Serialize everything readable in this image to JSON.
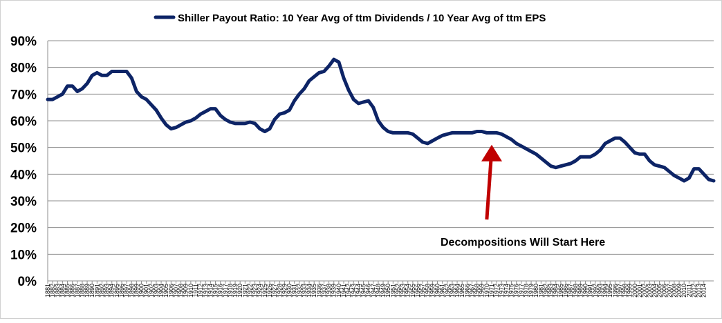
{
  "chart_data": {
    "type": "line",
    "title": "",
    "xlabel": "",
    "ylabel": "",
    "ylim": [
      0,
      90
    ],
    "y_ticks": [
      "0%",
      "10%",
      "20%",
      "30%",
      "40%",
      "50%",
      "60%",
      "70%",
      "80%",
      "90%"
    ],
    "grid": true,
    "legend_position": "top",
    "x_ticks": [
      "1881",
      "1883",
      "1885",
      "1887",
      "1889",
      "1891",
      "1893",
      "1895",
      "1897",
      "1899",
      "1901",
      "1903",
      "1905",
      "1907",
      "1909",
      "1911",
      "1913",
      "1915",
      "1917",
      "1919",
      "1921",
      "1923",
      "1925",
      "1927",
      "1929",
      "1931",
      "1933",
      "1935",
      "1937",
      "1939",
      "1941",
      "1943",
      "1945",
      "1947",
      "1949",
      "1951",
      "1953",
      "1955",
      "1957",
      "1959",
      "1961",
      "1963",
      "1965",
      "1967",
      "1969",
      "1971",
      "1973",
      "1975",
      "1977",
      "1979",
      "1981",
      "1983",
      "1985",
      "1987",
      "1989",
      "1991",
      "1993",
      "1995",
      "1997",
      "1999",
      "2001",
      "2003",
      "2005",
      "2007",
      "2009",
      "2011",
      "2013"
    ],
    "x_ticks_alt": [
      "1882",
      "1884",
      "1886",
      "1888",
      "1890",
      "1892",
      "1894",
      "1896",
      "1898",
      "1900",
      "1902",
      "1904",
      "1906",
      "1908",
      "1910",
      "1912",
      "1914",
      "1916",
      "1918",
      "1920",
      "1922",
      "1924",
      "1926",
      "1928",
      "1930",
      "1932",
      "1934",
      "1936",
      "1938",
      "1940",
      "1942",
      "1944",
      "1946",
      "1948",
      "1950",
      "1952",
      "1954",
      "1956",
      "1958",
      "1960",
      "1962",
      "1964",
      "1966",
      "1968",
      "1970",
      "1972",
      "1974",
      "1976",
      "1978",
      "1980",
      "1982",
      "1984",
      "1986",
      "1988",
      "1990",
      "1992",
      "1994",
      "1996",
      "1998",
      "2000",
      "2002",
      "2004",
      "2006",
      "2008",
      "2010",
      "2012",
      "2014"
    ],
    "series": [
      {
        "name": "Shiller Payout Ratio: 10 Year Avg of ttm Dividends / 10 Year Avg of ttm EPS",
        "color": "#0d2466",
        "points": [
          [
            1881,
            68
          ],
          [
            1882,
            68
          ],
          [
            1883,
            69
          ],
          [
            1884,
            70
          ],
          [
            1885,
            73
          ],
          [
            1886,
            73
          ],
          [
            1887,
            71
          ],
          [
            1888,
            72
          ],
          [
            1889,
            74
          ],
          [
            1890,
            77
          ],
          [
            1891,
            78
          ],
          [
            1892,
            77
          ],
          [
            1893,
            77
          ],
          [
            1894,
            78.5
          ],
          [
            1895,
            78.5
          ],
          [
            1896,
            78.5
          ],
          [
            1897,
            78.5
          ],
          [
            1898,
            76
          ],
          [
            1899,
            71
          ],
          [
            1900,
            69
          ],
          [
            1901,
            68
          ],
          [
            1902,
            66
          ],
          [
            1903,
            64
          ],
          [
            1904,
            61
          ],
          [
            1905,
            58.5
          ],
          [
            1906,
            57
          ],
          [
            1907,
            57.5
          ],
          [
            1908,
            58.5
          ],
          [
            1909,
            59.5
          ],
          [
            1910,
            60
          ],
          [
            1911,
            61
          ],
          [
            1912,
            62.5
          ],
          [
            1913,
            63.5
          ],
          [
            1914,
            64.5
          ],
          [
            1915,
            64.5
          ],
          [
            1916,
            62
          ],
          [
            1917,
            60.5
          ],
          [
            1918,
            59.5
          ],
          [
            1919,
            59
          ],
          [
            1920,
            59
          ],
          [
            1921,
            59
          ],
          [
            1922,
            59.5
          ],
          [
            1923,
            59
          ],
          [
            1924,
            57
          ],
          [
            1925,
            56
          ],
          [
            1926,
            57
          ],
          [
            1927,
            60.5
          ],
          [
            1928,
            62.5
          ],
          [
            1929,
            63
          ],
          [
            1930,
            64
          ],
          [
            1931,
            67.5
          ],
          [
            1932,
            70
          ],
          [
            1933,
            72
          ],
          [
            1934,
            75
          ],
          [
            1935,
            76.5
          ],
          [
            1936,
            78
          ],
          [
            1937,
            78.5
          ],
          [
            1938,
            80.5
          ],
          [
            1939,
            83
          ],
          [
            1940,
            82
          ],
          [
            1941,
            76
          ],
          [
            1942,
            71.5
          ],
          [
            1943,
            68
          ],
          [
            1944,
            66.5
          ],
          [
            1945,
            67
          ],
          [
            1946,
            67.5
          ],
          [
            1947,
            65
          ],
          [
            1948,
            60
          ],
          [
            1949,
            57.5
          ],
          [
            1950,
            56
          ],
          [
            1951,
            55.5
          ],
          [
            1952,
            55.5
          ],
          [
            1953,
            55.5
          ],
          [
            1954,
            55.5
          ],
          [
            1955,
            55
          ],
          [
            1956,
            53.5
          ],
          [
            1957,
            52
          ],
          [
            1958,
            51.5
          ],
          [
            1959,
            52.5
          ],
          [
            1960,
            53.5
          ],
          [
            1961,
            54.5
          ],
          [
            1962,
            55
          ],
          [
            1963,
            55.5
          ],
          [
            1964,
            55.5
          ],
          [
            1965,
            55.5
          ],
          [
            1966,
            55.5
          ],
          [
            1967,
            55.5
          ],
          [
            1968,
            56
          ],
          [
            1969,
            56
          ],
          [
            1970,
            55.5
          ],
          [
            1971,
            55.5
          ],
          [
            1972,
            55.5
          ],
          [
            1973,
            55
          ],
          [
            1974,
            54
          ],
          [
            1975,
            53
          ],
          [
            1976,
            51.5
          ],
          [
            1977,
            50.5
          ],
          [
            1978,
            49.5
          ],
          [
            1979,
            48.5
          ],
          [
            1980,
            47.5
          ],
          [
            1981,
            46
          ],
          [
            1982,
            44.5
          ],
          [
            1983,
            43
          ],
          [
            1984,
            42.5
          ],
          [
            1985,
            43
          ],
          [
            1986,
            43.5
          ],
          [
            1987,
            44
          ],
          [
            1988,
            45
          ],
          [
            1989,
            46.5
          ],
          [
            1990,
            46.5
          ],
          [
            1991,
            46.5
          ],
          [
            1992,
            47.5
          ],
          [
            1993,
            49
          ],
          [
            1994,
            51.5
          ],
          [
            1995,
            52.5
          ],
          [
            1996,
            53.5
          ],
          [
            1997,
            53.5
          ],
          [
            1998,
            52
          ],
          [
            1999,
            50
          ],
          [
            2000,
            48
          ],
          [
            2001,
            47.5
          ],
          [
            2002,
            47.5
          ],
          [
            2003,
            45
          ],
          [
            2004,
            43.5
          ],
          [
            2005,
            43
          ],
          [
            2006,
            42.5
          ],
          [
            2007,
            41
          ],
          [
            2008,
            39.5
          ],
          [
            2009,
            38.5
          ],
          [
            2010,
            37.5
          ],
          [
            2011,
            38.5
          ],
          [
            2012,
            42
          ],
          [
            2013,
            42
          ],
          [
            2014,
            40
          ],
          [
            2015,
            38
          ],
          [
            2016,
            37.5
          ]
        ]
      }
    ],
    "annotation": {
      "text": "Decompositions Will Start Here",
      "arrow_color": "#c00000",
      "arrow_tip_x": 1971,
      "arrow_tip_y": 51,
      "arrow_tail_x": 1970,
      "arrow_tail_y": 23
    }
  }
}
